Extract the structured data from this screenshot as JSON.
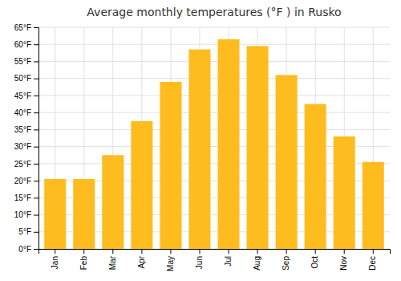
{
  "chart_data": {
    "type": "bar",
    "title": "Average monthly temperatures (°F ) in Rusko",
    "categories": [
      "Jan",
      "Feb",
      "Mar",
      "Apr",
      "May",
      "Jun",
      "Jul",
      "Aug",
      "Sep",
      "Oct",
      "Nov",
      "Dec"
    ],
    "values": [
      20.5,
      20.5,
      27.5,
      37.5,
      49.0,
      58.5,
      61.5,
      59.5,
      51.0,
      42.5,
      33.0,
      25.5
    ],
    "color": "#FFBC1F",
    "ylim": [
      0,
      65
    ],
    "yticks": [
      {
        "value": 0,
        "label": "0°F"
      },
      {
        "value": 5,
        "label": "5°F"
      },
      {
        "value": 10,
        "label": "10°F"
      },
      {
        "value": 15,
        "label": "15°F"
      },
      {
        "value": 20,
        "label": "20°F"
      },
      {
        "value": 25,
        "label": "25°F"
      },
      {
        "value": 30,
        "label": "30°F"
      },
      {
        "value": 35,
        "label": "35°F"
      },
      {
        "value": 40,
        "label": "40°F"
      },
      {
        "value": 45,
        "label": "45°F"
      },
      {
        "value": 50,
        "label": "50°F"
      },
      {
        "value": 55,
        "label": "55°F"
      },
      {
        "value": 60,
        "label": "60°F"
      },
      {
        "value": 65,
        "label": "65°F"
      }
    ],
    "grid": true
  }
}
